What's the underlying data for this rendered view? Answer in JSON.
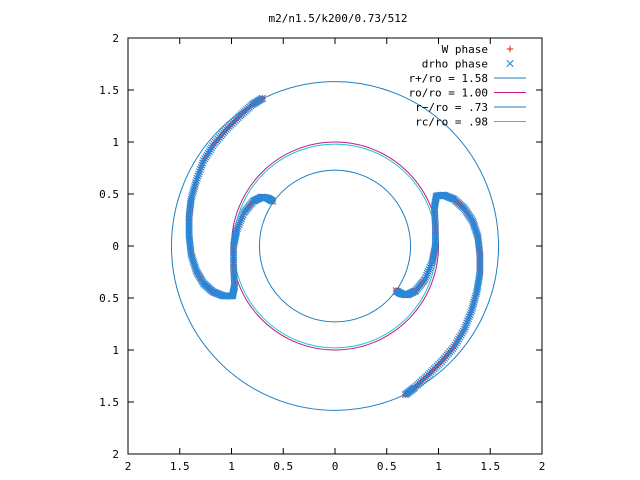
{
  "chart_data": {
    "type": "scatter",
    "title": "m2/n1.5/k200/0.73/512",
    "xlim": [
      -2,
      2
    ],
    "ylim": [
      -2,
      2
    ],
    "x_ticks": [
      {
        "value": -2,
        "label": "2"
      },
      {
        "value": -1.5,
        "label": "1.5"
      },
      {
        "value": -1,
        "label": "1"
      },
      {
        "value": -0.5,
        "label": "0.5"
      },
      {
        "value": 0,
        "label": "0"
      },
      {
        "value": 0.5,
        "label": "0.5"
      },
      {
        "value": 1,
        "label": "1"
      },
      {
        "value": 1.5,
        "label": "1.5"
      },
      {
        "value": 2,
        "label": "2"
      }
    ],
    "y_ticks": [
      {
        "value": 2,
        "label": "2"
      },
      {
        "value": 1.5,
        "label": "1.5"
      },
      {
        "value": 1,
        "label": "1"
      },
      {
        "value": 0.5,
        "label": "0.5"
      },
      {
        "value": 0,
        "label": "0"
      },
      {
        "value": -0.5,
        "label": "0.5"
      },
      {
        "value": -1,
        "label": "1"
      },
      {
        "value": -1.5,
        "label": "1.5"
      },
      {
        "value": -2,
        "label": "2"
      }
    ],
    "grid": false,
    "legend_position": "top-right",
    "circles": [
      {
        "name": "r+/ro = 1.58",
        "radius": 1.58,
        "color": "#1f7fc0"
      },
      {
        "name": "ro/ro = 1.00",
        "radius": 1.0,
        "color": "#c2188a"
      },
      {
        "name": "r−/ro = .73",
        "radius": 0.73,
        "color": "#1f7fc0"
      },
      {
        "name": "rc/ro = .98",
        "radius": 0.98,
        "color": "#22c8c8"
      }
    ],
    "series": [
      {
        "name": "W phase",
        "marker": "+",
        "color": "#e0161c",
        "arms": [
          [
            [
              -0.7,
              1.42
            ],
            [
              -0.8,
              1.36
            ],
            [
              -0.92,
              1.25
            ],
            [
              -1.05,
              1.12
            ],
            [
              -1.17,
              0.98
            ],
            [
              -1.27,
              0.82
            ],
            [
              -1.34,
              0.63
            ],
            [
              -1.39,
              0.45
            ],
            [
              -1.41,
              0.28
            ],
            [
              -1.41,
              0.1
            ],
            [
              -1.39,
              -0.08
            ],
            [
              -1.34,
              -0.24
            ],
            [
              -1.27,
              -0.36
            ],
            [
              -1.18,
              -0.44
            ],
            [
              -1.08,
              -0.48
            ],
            [
              -0.99,
              -0.48
            ],
            [
              -0.97,
              -0.38
            ],
            [
              -0.98,
              -0.2
            ],
            [
              -0.98,
              0.0
            ],
            [
              -0.95,
              0.15
            ],
            [
              -0.88,
              0.32
            ],
            [
              -0.79,
              0.43
            ],
            [
              -0.71,
              0.47
            ],
            [
              -0.65,
              0.46
            ],
            [
              -0.6,
              0.43
            ]
          ],
          [
            [
              0.68,
              -1.43
            ],
            [
              0.77,
              -1.36
            ],
            [
              0.9,
              -1.24
            ],
            [
              1.03,
              -1.11
            ],
            [
              1.15,
              -0.97
            ],
            [
              1.25,
              -0.8
            ],
            [
              1.32,
              -0.62
            ],
            [
              1.37,
              -0.44
            ],
            [
              1.4,
              -0.26
            ],
            [
              1.4,
              -0.08
            ],
            [
              1.38,
              0.09
            ],
            [
              1.33,
              0.24
            ],
            [
              1.25,
              0.36
            ],
            [
              1.15,
              0.45
            ],
            [
              1.05,
              0.49
            ],
            [
              0.98,
              0.48
            ],
            [
              0.96,
              0.37
            ],
            [
              0.97,
              0.19
            ],
            [
              0.97,
              0.0
            ],
            [
              0.94,
              -0.15
            ],
            [
              0.87,
              -0.32
            ],
            [
              0.78,
              -0.43
            ],
            [
              0.7,
              -0.47
            ],
            [
              0.64,
              -0.46
            ],
            [
              0.59,
              -0.43
            ]
          ]
        ]
      },
      {
        "name": "drho phase",
        "marker": "x",
        "color": "#2b88d8",
        "arms": [
          [
            [
              -0.7,
              1.42
            ],
            [
              -0.8,
              1.36
            ],
            [
              -0.92,
              1.25
            ],
            [
              -1.05,
              1.12
            ],
            [
              -1.17,
              0.98
            ],
            [
              -1.27,
              0.82
            ],
            [
              -1.34,
              0.63
            ],
            [
              -1.39,
              0.45
            ],
            [
              -1.41,
              0.28
            ],
            [
              -1.41,
              0.1
            ],
            [
              -1.39,
              -0.08
            ],
            [
              -1.34,
              -0.24
            ],
            [
              -1.27,
              -0.36
            ],
            [
              -1.18,
              -0.44
            ],
            [
              -1.08,
              -0.48
            ],
            [
              -0.99,
              -0.48
            ],
            [
              -0.97,
              -0.38
            ],
            [
              -0.98,
              -0.2
            ],
            [
              -0.98,
              0.0
            ],
            [
              -0.95,
              0.15
            ],
            [
              -0.88,
              0.32
            ],
            [
              -0.79,
              0.43
            ],
            [
              -0.71,
              0.47
            ],
            [
              -0.65,
              0.46
            ],
            [
              -0.6,
              0.43
            ]
          ],
          [
            [
              0.68,
              -1.43
            ],
            [
              0.77,
              -1.36
            ],
            [
              0.9,
              -1.24
            ],
            [
              1.03,
              -1.11
            ],
            [
              1.15,
              -0.97
            ],
            [
              1.25,
              -0.8
            ],
            [
              1.32,
              -0.62
            ],
            [
              1.37,
              -0.44
            ],
            [
              1.4,
              -0.26
            ],
            [
              1.4,
              -0.08
            ],
            [
              1.38,
              0.09
            ],
            [
              1.33,
              0.24
            ],
            [
              1.25,
              0.36
            ],
            [
              1.15,
              0.45
            ],
            [
              1.05,
              0.49
            ],
            [
              0.98,
              0.48
            ],
            [
              0.96,
              0.37
            ],
            [
              0.97,
              0.19
            ],
            [
              0.97,
              0.0
            ],
            [
              0.94,
              -0.15
            ],
            [
              0.87,
              -0.32
            ],
            [
              0.78,
              -0.43
            ],
            [
              0.7,
              -0.47
            ],
            [
              0.64,
              -0.46
            ],
            [
              0.59,
              -0.43
            ]
          ]
        ]
      }
    ]
  }
}
